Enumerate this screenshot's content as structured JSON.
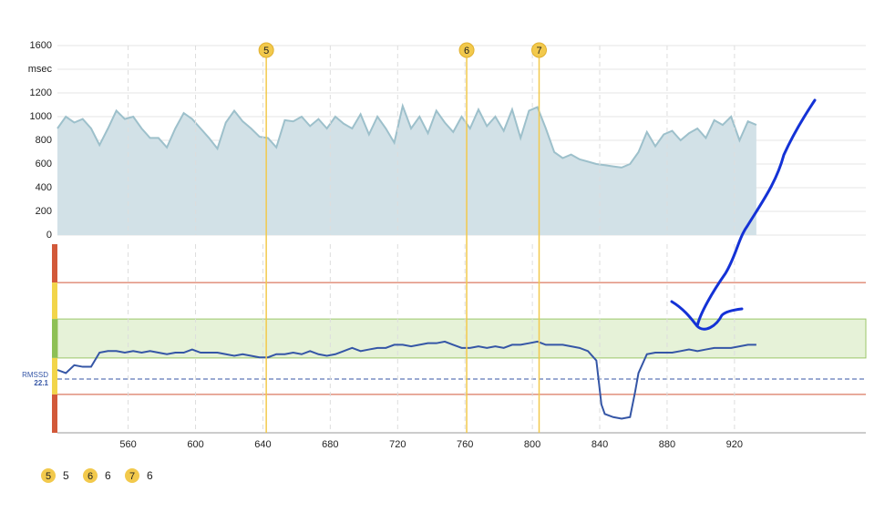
{
  "chart_data": [
    {
      "type": "area",
      "color": "#d2e1e7",
      "line_color": "#9dc0cb",
      "xlim": [
        518,
        998
      ],
      "ylim": [
        0,
        1600
      ],
      "yticks": [
        0,
        200,
        400,
        600,
        800,
        1000,
        1200,
        {
          "value": 1400,
          "label": "msec"
        },
        1600
      ],
      "grid": true,
      "x": [
        518,
        523,
        528,
        533,
        538,
        543,
        548,
        553,
        558,
        563,
        568,
        573,
        578,
        583,
        588,
        593,
        598,
        603,
        608,
        613,
        618,
        623,
        628,
        633,
        638,
        643,
        648,
        653,
        658,
        663,
        668,
        673,
        678,
        683,
        688,
        693,
        698,
        703,
        708,
        713,
        718,
        723,
        728,
        733,
        738,
        743,
        748,
        753,
        758,
        763,
        768,
        773,
        778,
        783,
        788,
        793,
        798,
        803,
        808,
        813,
        818,
        823,
        828,
        833,
        838,
        843,
        848,
        853,
        858,
        863,
        868,
        873,
        878,
        883,
        888,
        893,
        898,
        903,
        908,
        913,
        918,
        923,
        928,
        933
      ],
      "values": [
        900,
        1000,
        950,
        980,
        900,
        760,
        900,
        1050,
        980,
        1000,
        900,
        820,
        820,
        740,
        900,
        1030,
        980,
        900,
        820,
        730,
        950,
        1050,
        960,
        900,
        830,
        820,
        740,
        970,
        960,
        1000,
        920,
        980,
        900,
        1000,
        940,
        900,
        1020,
        850,
        1000,
        900,
        780,
        1090,
        900,
        1000,
        860,
        1050,
        950,
        870,
        1000,
        900,
        1060,
        920,
        1000,
        880,
        1060,
        820,
        1050,
        1080,
        900,
        700,
        650,
        680,
        640,
        620,
        600,
        590,
        580,
        570,
        600,
        700,
        870,
        750,
        850,
        880,
        800,
        860,
        900,
        820,
        970,
        930,
        1000,
        800,
        960,
        930
      ]
    },
    {
      "type": "line",
      "color": "#3556a6",
      "xlim": [
        518,
        998
      ],
      "ylim": [
        5,
        65
      ],
      "xticks": [
        560,
        600,
        640,
        680,
        720,
        760,
        800,
        840,
        880,
        920
      ],
      "grid": true,
      "bands": [
        {
          "from": 52.8,
          "to": 65,
          "color": "#d2593a"
        },
        {
          "from": 41.2,
          "to": 52.8,
          "color": "#f2d54a"
        },
        {
          "from": 28.8,
          "to": 41.2,
          "color": "#8dc055"
        },
        {
          "from": 17.2,
          "to": 28.8,
          "color": "#f2d54a"
        },
        {
          "from": 5,
          "to": 17.2,
          "color": "#d2593a"
        }
      ],
      "reference": {
        "label": "RMSSD",
        "value": 22.1
      },
      "x": [
        518,
        523,
        528,
        533,
        538,
        543,
        548,
        553,
        558,
        563,
        568,
        573,
        578,
        583,
        588,
        593,
        598,
        603,
        608,
        613,
        618,
        623,
        628,
        633,
        638,
        643,
        648,
        653,
        658,
        663,
        668,
        673,
        678,
        683,
        688,
        693,
        698,
        703,
        708,
        713,
        718,
        723,
        728,
        733,
        738,
        743,
        748,
        753,
        758,
        763,
        768,
        773,
        778,
        783,
        788,
        793,
        798,
        803,
        808,
        813,
        818,
        823,
        828,
        833,
        838,
        841,
        843,
        848,
        853,
        858,
        861,
        863,
        868,
        873,
        878,
        883,
        888,
        893,
        898,
        903,
        908,
        913,
        918,
        923,
        928,
        933
      ],
      "values": [
        25,
        24,
        26.5,
        26,
        26,
        30.5,
        31,
        31,
        30.5,
        31,
        30.5,
        31,
        30.5,
        30,
        30.5,
        30.5,
        31.5,
        30.5,
        30.5,
        30.5,
        30,
        29.5,
        30,
        29.5,
        29,
        29,
        30,
        30,
        30.5,
        30,
        31,
        30,
        29.5,
        30,
        31,
        32,
        31,
        31.5,
        32,
        32,
        33,
        33,
        32.5,
        33,
        33.5,
        33.5,
        34,
        33,
        32,
        32,
        32.5,
        32,
        32.5,
        32,
        33,
        33,
        33.5,
        34,
        33,
        33,
        33,
        32.5,
        32,
        31,
        28,
        14,
        11,
        10,
        9.5,
        10,
        18,
        24,
        30,
        30.5,
        30.5,
        30.5,
        31,
        31.5,
        31,
        31.5,
        32,
        32,
        32,
        32.5,
        33,
        33
      ],
      "markers": [
        {
          "x": 642,
          "label": "5",
          "name": "5"
        },
        {
          "x": 761,
          "label": "6",
          "name": "6"
        },
        {
          "x": 804,
          "label": "7",
          "name": "6"
        }
      ]
    }
  ]
}
